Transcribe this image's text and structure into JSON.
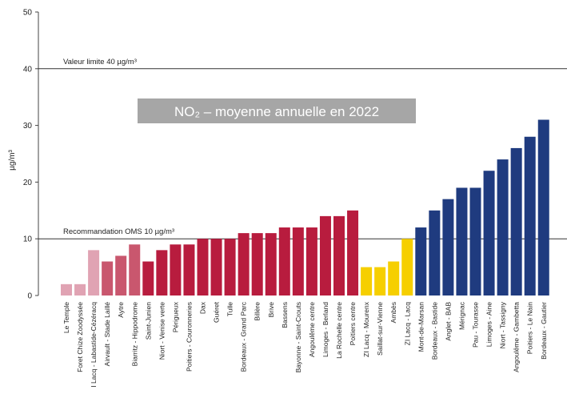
{
  "chart_data": {
    "type": "bar",
    "title": "NO₂ – moyenne annuelle en 2022",
    "ylabel": "µg/m³",
    "ylim": [
      0,
      50
    ],
    "yticks": [
      "0",
      "10",
      "20",
      "30",
      "40",
      "50"
    ],
    "grid": false,
    "reference_lines": [
      {
        "value": 40,
        "label": "Valeur limite 40 µg/m³"
      },
      {
        "value": 10,
        "label": "Recommandation OMS 10 µg/m³"
      }
    ],
    "bars": [
      {
        "label": "Le Temple",
        "value": 2,
        "color": "#e0a3b3"
      },
      {
        "label": "Foret Chize Zoodyssée",
        "value": 2,
        "color": "#e0a3b3"
      },
      {
        "label": "I Lacq - Labastide-Cézéracq",
        "value": 8,
        "color": "#e0a3b3"
      },
      {
        "label": "Airvault - Stade Laillé",
        "value": 6,
        "color": "#c9576e"
      },
      {
        "label": "Aytre",
        "value": 7,
        "color": "#c9576e"
      },
      {
        "label": "Biarritz - Hippodrome",
        "value": 9,
        "color": "#c9576e"
      },
      {
        "label": "Saint-Junien",
        "value": 6,
        "color": "#b81c3e"
      },
      {
        "label": "Niort - Venise verte",
        "value": 8,
        "color": "#b81c3e"
      },
      {
        "label": "Périgueux",
        "value": 9,
        "color": "#b81c3e"
      },
      {
        "label": "Poitiers - Couronneries",
        "value": 9,
        "color": "#b81c3e"
      },
      {
        "label": "Dax",
        "value": 10,
        "color": "#b81c3e"
      },
      {
        "label": "Guéret",
        "value": 10,
        "color": "#b81c3e"
      },
      {
        "label": "Tulle",
        "value": 10,
        "color": "#b81c3e"
      },
      {
        "label": "Bordeaux - Grand Parc",
        "value": 11,
        "color": "#b81c3e"
      },
      {
        "label": "Billère",
        "value": 11,
        "color": "#b81c3e"
      },
      {
        "label": "Brive",
        "value": 11,
        "color": "#b81c3e"
      },
      {
        "label": "Bassens",
        "value": 12,
        "color": "#b81c3e"
      },
      {
        "label": "Bayonne - Saint-Crouts",
        "value": 12,
        "color": "#b81c3e"
      },
      {
        "label": "Angoulême centre",
        "value": 12,
        "color": "#b81c3e"
      },
      {
        "label": "Limoges - Berland",
        "value": 14,
        "color": "#b81c3e"
      },
      {
        "label": "La Rochelle centre",
        "value": 14,
        "color": "#b81c3e"
      },
      {
        "label": "Poitiers centre",
        "value": 15,
        "color": "#b81c3e"
      },
      {
        "label": "ZI Lacq - Mourenx",
        "value": 5,
        "color": "#f6cf00"
      },
      {
        "label": "Saillat-sur-Vienne",
        "value": 5,
        "color": "#f6cf00"
      },
      {
        "label": "Ambès",
        "value": 6,
        "color": "#f6cf00"
      },
      {
        "label": "ZI Lacq - Lacq",
        "value": 10,
        "color": "#f6cf00"
      },
      {
        "label": "Mont-de-Marsan",
        "value": 12,
        "color": "#1f3b7f"
      },
      {
        "label": "Bordeaux - Bastide",
        "value": 15,
        "color": "#1f3b7f"
      },
      {
        "label": "Anglet - BAB",
        "value": 17,
        "color": "#1f3b7f"
      },
      {
        "label": "Mérignac",
        "value": 19,
        "color": "#1f3b7f"
      },
      {
        "label": "Pau - Tourasse",
        "value": 19,
        "color": "#1f3b7f"
      },
      {
        "label": "Limoges - Aine",
        "value": 22,
        "color": "#1f3b7f"
      },
      {
        "label": "Niort - Tassigny",
        "value": 24,
        "color": "#1f3b7f"
      },
      {
        "label": "Angoulême - Gambetta",
        "value": 26,
        "color": "#1f3b7f"
      },
      {
        "label": "Poitiers - Le Nain",
        "value": 28,
        "color": "#1f3b7f"
      },
      {
        "label": "Bordeaux - Gautier",
        "value": 31,
        "color": "#1f3b7f"
      }
    ]
  }
}
